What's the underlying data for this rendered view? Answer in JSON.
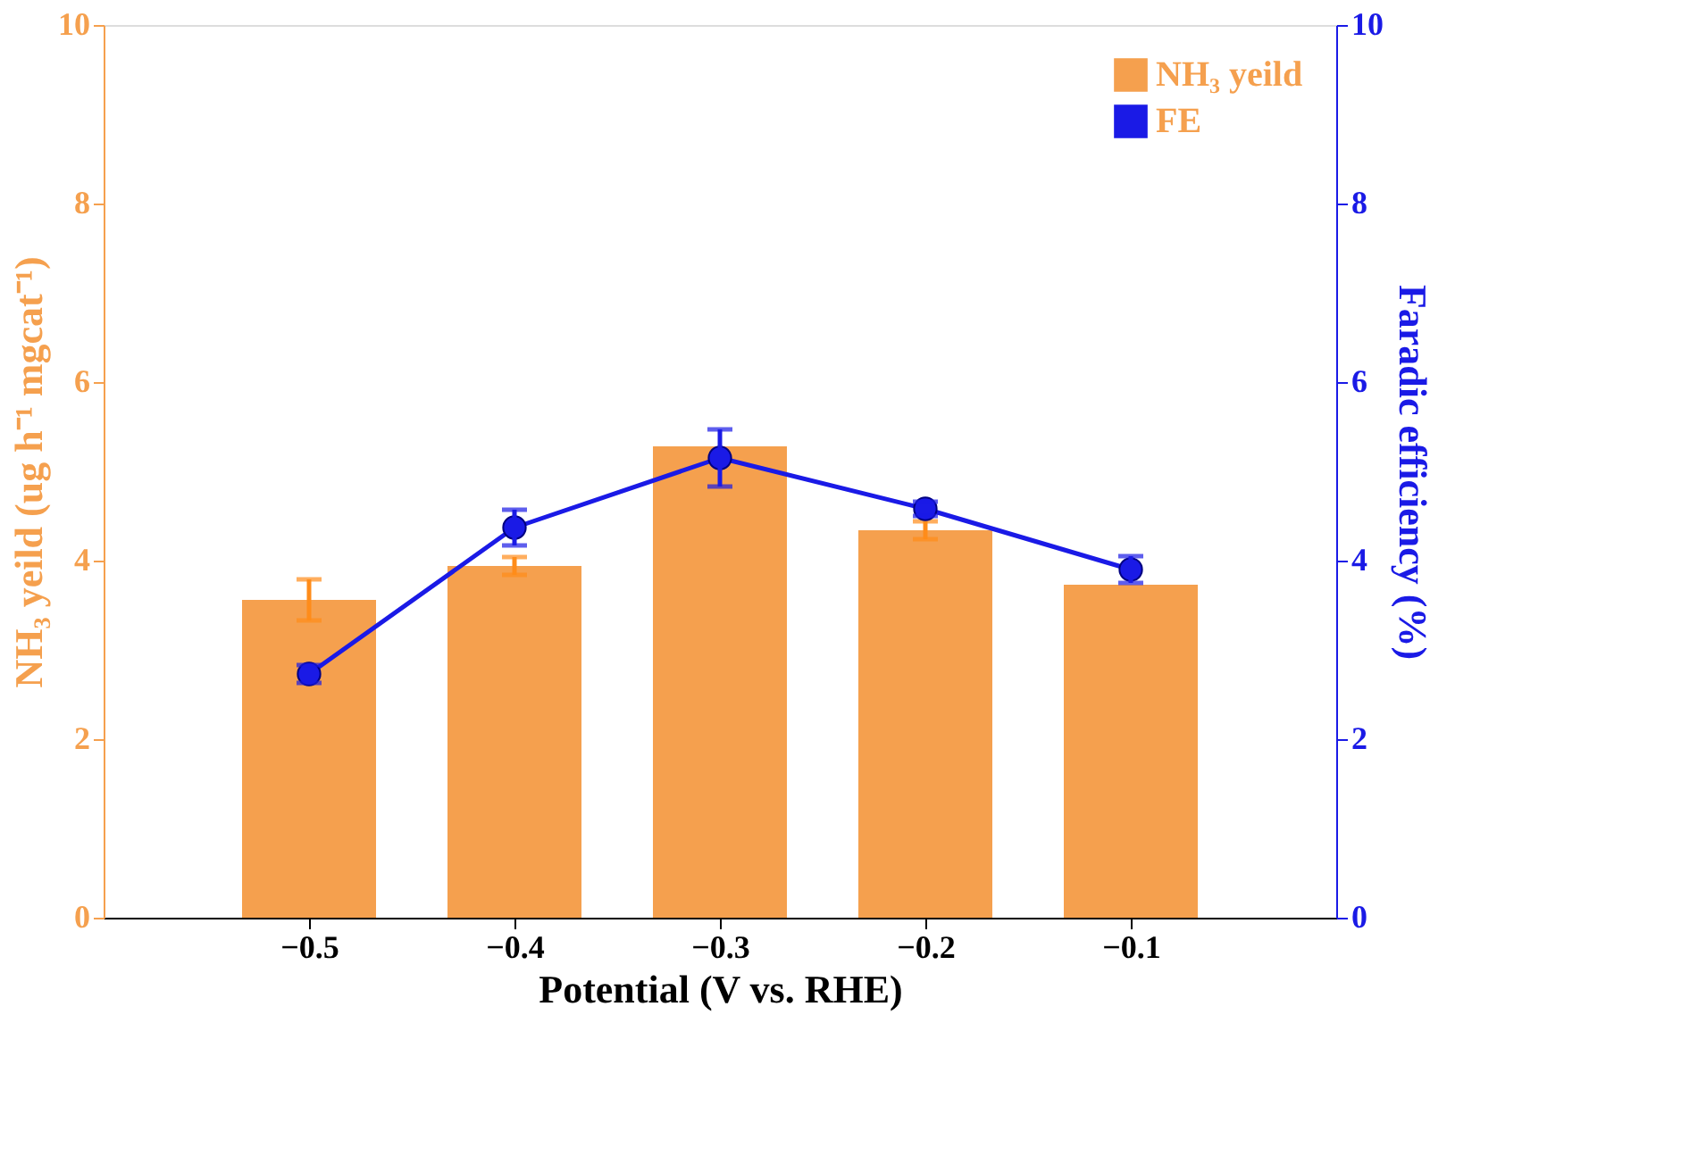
{
  "chart_data": {
    "type": "bar",
    "xlabel": "Potential (V vs. RHE)",
    "ylabel": "NH₃ yeild (ug h⁻¹ mgcat⁻¹)",
    "y2label": "Faradic efficiency (%)",
    "x": [
      -0.5,
      -0.4,
      -0.3,
      -0.2,
      -0.1
    ],
    "xlim": [
      -0.6,
      0.0
    ],
    "xticks": [
      -0.5,
      -0.4,
      -0.3,
      -0.2,
      -0.1
    ],
    "ylim": [
      0,
      10
    ],
    "yticks": [
      0,
      2,
      4,
      6,
      8,
      10
    ],
    "y2lim": [
      0,
      10
    ],
    "y2ticks": [
      0,
      2,
      4,
      6,
      8,
      10
    ],
    "legend": "top right",
    "grid": false,
    "series": [
      {
        "name": "NH₃ yeild",
        "color": "#f5a04e",
        "values": [
          3.56,
          3.94,
          5.28,
          4.34,
          3.73
        ],
        "errors": [
          0.23,
          0.1,
          null,
          0.1,
          null
        ]
      },
      {
        "name": "FE",
        "type": "line",
        "axis": "y2",
        "color": "#1a1ae6",
        "marker": "circle",
        "line_style": "solid",
        "values": [
          2.73,
          4.37,
          5.15,
          4.58,
          3.9
        ],
        "errors": [
          0.1,
          0.2,
          0.32,
          0.08,
          0.15
        ]
      }
    ]
  }
}
